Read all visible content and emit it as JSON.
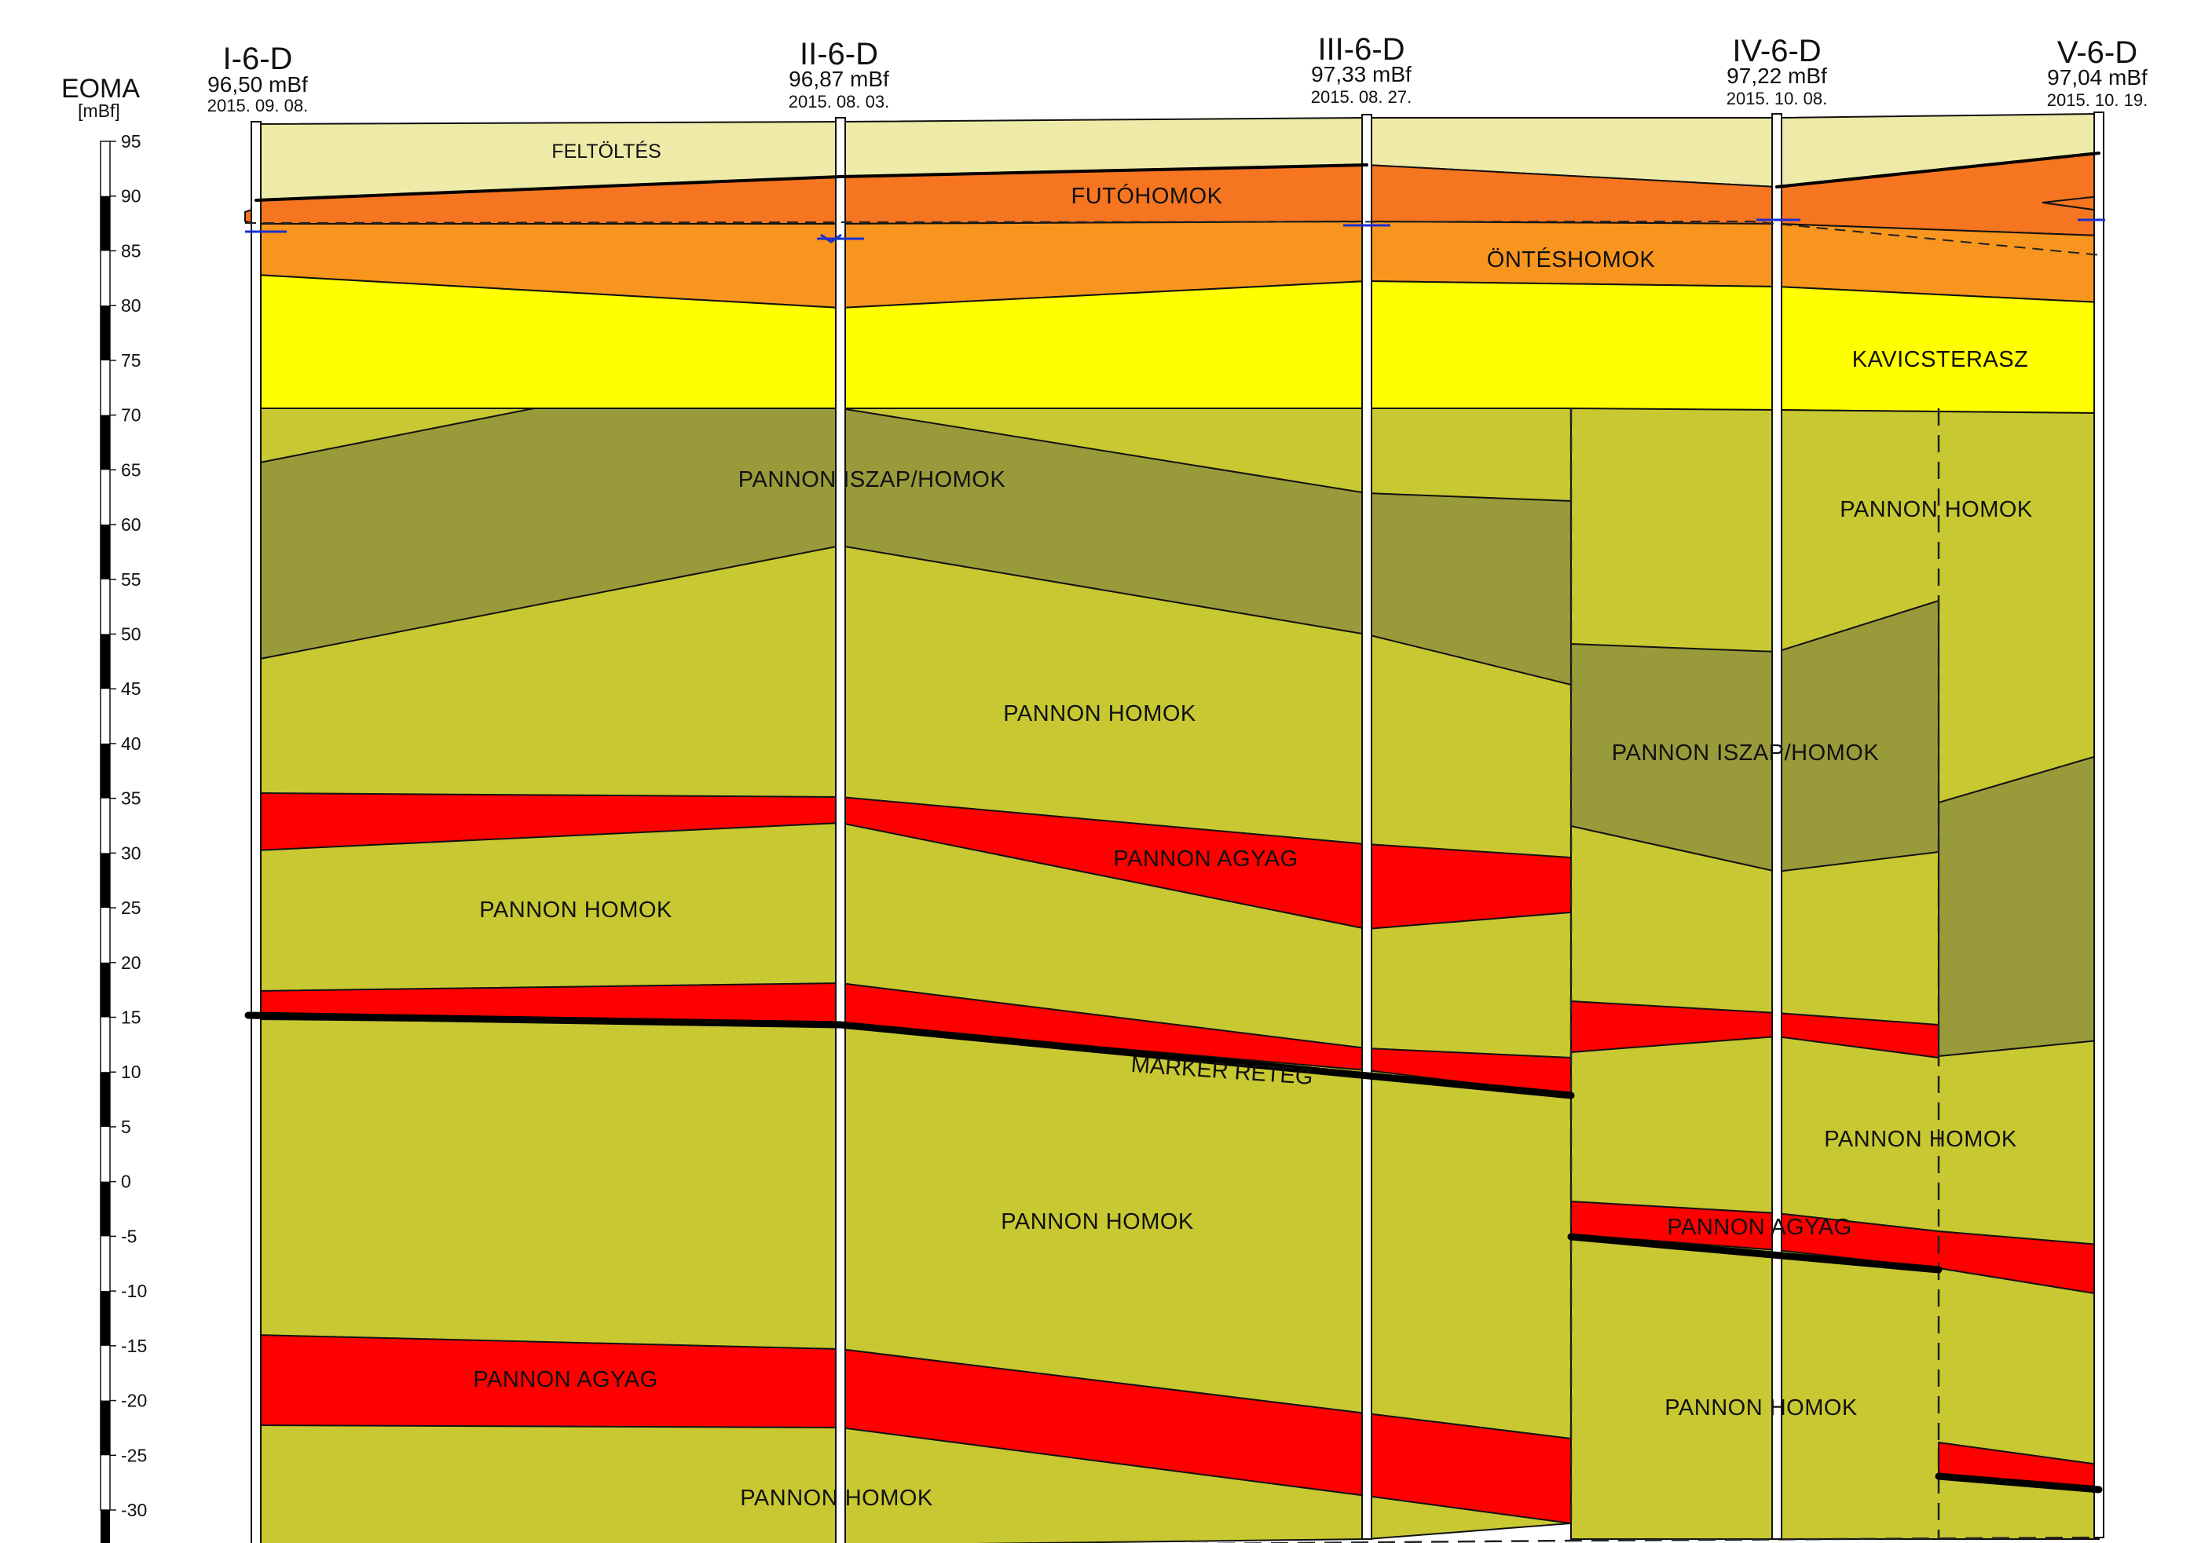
{
  "diagram": {
    "scale": {
      "title": "EOMA",
      "unit": "[mBf]",
      "min": -30,
      "max": 95,
      "step": 5,
      "ticks": [
        "95",
        "90",
        "85",
        "80",
        "75",
        "70",
        "65",
        "60",
        "55",
        "50",
        "45",
        "40",
        "35",
        "30",
        "25",
        "20",
        "15",
        "10",
        "5",
        "0",
        "-5",
        "-10",
        "-15",
        "-20",
        "-25",
        "-30"
      ]
    },
    "boreholes": [
      {
        "name": "I-6-D",
        "elevation": "96,50 mBf",
        "date": "2015. 09. 08."
      },
      {
        "name": "II-6-D",
        "elevation": "96,87 mBf",
        "date": "2015. 08. 03."
      },
      {
        "name": "III-6-D",
        "elevation": "97,33 mBf",
        "date": "2015. 08. 27."
      },
      {
        "name": "IV-6-D",
        "elevation": "97,22 mBf",
        "date": "2015. 10. 08."
      },
      {
        "name": "V-6-D",
        "elevation": "97,04 mBf",
        "date": "2015. 10. 19."
      }
    ],
    "layer_labels": {
      "feltoltes": "FELTÖLTÉS",
      "futohomok": "FUTÓHOMOK",
      "onteshomok": "ÖNTÉSHOMOK",
      "kavicsterasz": "KAVICSTERASZ",
      "iszap_1": "PANNON ISZAP/HOMOK",
      "homok_upper_right": "PANNON HOMOK",
      "homok_mid": "PANNON HOMOK",
      "iszap_2": "PANNON ISZAP/HOMOK",
      "agyag_1": "PANNON AGYAG",
      "homok_left": "PANNON HOMOK",
      "marker": "MARKER RÉTEG",
      "homok_right_lower": "PANNON HOMOK",
      "homok_lower": "PANNON HOMOK",
      "agyag_2": "PANNON AGYAG",
      "homok_deep_right": "PANNON HOMOK",
      "agyag_3": "PANNON AGYAG",
      "homok_bottom": "PANNON HOMOK"
    },
    "colors": {
      "feltoltes": "#eeeba8",
      "futohomok": "#f57520",
      "onteshomok": "#f7951e",
      "kavicsterasz": "#ffff00",
      "pannon_homok": "#c8c832",
      "pannon_iszap_homok": "#999a3a",
      "pannon_agyag": "#ff0000",
      "water_level": "#1a2fd0"
    }
  }
}
